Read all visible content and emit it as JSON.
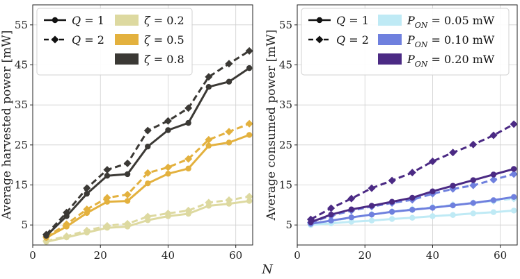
{
  "chart_data": [
    {
      "type": "line",
      "ylabel": "Average harvested power [mW]",
      "xlim": [
        0,
        65
      ],
      "ylim": [
        0,
        60
      ],
      "xticks": [
        0,
        20,
        40,
        60
      ],
      "yticks": [
        5,
        15,
        25,
        35,
        45,
        55
      ],
      "grid": true,
      "x": [
        4,
        10,
        16,
        22,
        28,
        34,
        40,
        46,
        52,
        58,
        64
      ],
      "series": [
        {
          "name": "ζ = 0.2, Q = 1",
          "color": "#ddd9a0",
          "style": "solid",
          "marker": "circle",
          "values": [
            0.8,
            1.9,
            3.1,
            4.3,
            4.6,
            6.2,
            7.2,
            7.8,
            9.8,
            10.3,
            11.0
          ]
        },
        {
          "name": "ζ = 0.2, Q = 2",
          "color": "#ddd9a0",
          "style": "dashed",
          "marker": "diamond",
          "values": [
            1.0,
            2.2,
            3.6,
            4.8,
            5.3,
            7.1,
            7.9,
            8.6,
            10.6,
            11.2,
            12.1
          ]
        },
        {
          "name": "ζ = 0.5, Q = 1",
          "color": "#e3b13e",
          "style": "solid",
          "marker": "circle",
          "values": [
            1.8,
            4.6,
            8.0,
            10.8,
            11.0,
            15.4,
            17.8,
            19.1,
            24.8,
            25.6,
            27.5
          ]
        },
        {
          "name": "ζ = 0.5, Q = 2",
          "color": "#e3b13e",
          "style": "dashed",
          "marker": "diamond",
          "values": [
            2.0,
            5.2,
            8.9,
            11.8,
            12.6,
            18.0,
            19.4,
            21.5,
            26.3,
            28.3,
            30.3
          ]
        },
        {
          "name": "ζ = 0.8, Q = 1",
          "color": "#3b3935",
          "style": "solid",
          "marker": "circle",
          "values": [
            2.3,
            7.2,
            12.8,
            17.3,
            17.7,
            24.6,
            28.7,
            30.5,
            39.5,
            40.8,
            44.2
          ]
        },
        {
          "name": "ζ = 0.8, Q = 2",
          "color": "#3b3935",
          "style": "dashed",
          "marker": "diamond",
          "values": [
            2.6,
            8.1,
            14.2,
            18.8,
            20.4,
            28.6,
            31.0,
            34.2,
            42.0,
            45.3,
            48.5
          ]
        }
      ],
      "legend": {
        "placement": "top-left",
        "style_entries": [
          {
            "label": "Q = 1",
            "style": "solid",
            "marker": "circle"
          },
          {
            "label": "Q = 2",
            "style": "dashed",
            "marker": "diamond"
          }
        ],
        "color_entries": [
          {
            "label": "ζ = 0.2",
            "color": "#ddd9a0"
          },
          {
            "label": "ζ = 0.5",
            "color": "#e3b13e"
          },
          {
            "label": "ζ = 0.8",
            "color": "#3b3935"
          }
        ]
      }
    },
    {
      "type": "line",
      "ylabel": "Average consumed power [mW]",
      "xlim": [
        0,
        65
      ],
      "ylim": [
        0,
        60
      ],
      "xticks": [
        0,
        20,
        40,
        60
      ],
      "yticks": [
        5,
        15,
        25,
        35,
        45,
        55
      ],
      "grid": true,
      "x": [
        4,
        10,
        16,
        22,
        28,
        34,
        40,
        46,
        52,
        58,
        64
      ],
      "series": [
        {
          "name": "P_ON = 0.05 mW, Q = 1",
          "color": "#bfeaf5",
          "style": "solid",
          "marker": "circle",
          "values": [
            5.0,
            5.4,
            5.8,
            6.1,
            6.5,
            6.8,
            7.2,
            7.5,
            7.9,
            8.2,
            8.6
          ]
        },
        {
          "name": "P_ON = 0.05 mW, Q = 2",
          "color": "#bfeaf5",
          "style": "dashed",
          "marker": "diamond",
          "values": [
            5.2,
            6.0,
            6.8,
            7.6,
            8.3,
            8.9,
            9.4,
            10.0,
            10.5,
            11.0,
            11.6
          ]
        },
        {
          "name": "P_ON = 0.10 mW, Q = 1",
          "color": "#6f80de",
          "style": "solid",
          "marker": "circle",
          "values": [
            5.3,
            6.1,
            6.9,
            7.6,
            8.3,
            8.8,
            9.3,
            9.9,
            10.5,
            11.2,
            12.0
          ]
        },
        {
          "name": "P_ON = 0.10 mW, Q = 2",
          "color": "#6f80de",
          "style": "dashed",
          "marker": "diamond",
          "values": [
            5.6,
            7.3,
            8.6,
            9.6,
            10.5,
            11.3,
            12.8,
            14.0,
            14.9,
            16.3,
            17.7
          ]
        },
        {
          "name": "P_ON = 0.20 mW, Q = 1",
          "color": "#4b2a84",
          "style": "solid",
          "marker": "circle",
          "values": [
            5.7,
            7.6,
            8.9,
            9.8,
            10.8,
            11.8,
            13.4,
            14.8,
            16.2,
            17.6,
            19.0
          ]
        },
        {
          "name": "P_ON = 0.20 mW, Q = 2",
          "color": "#4b2a84",
          "style": "dashed",
          "marker": "diamond",
          "values": [
            6.4,
            9.2,
            11.6,
            14.2,
            16.1,
            18.1,
            20.9,
            23.1,
            25.1,
            27.4,
            30.2
          ]
        }
      ],
      "legend": {
        "placement": "top-left",
        "style_entries": [
          {
            "label": "Q = 1",
            "style": "solid",
            "marker": "circle"
          },
          {
            "label": "Q = 2",
            "style": "dashed",
            "marker": "diamond"
          }
        ],
        "color_entries": [
          {
            "label": "P_ON = 0.05 mW",
            "color": "#bfeaf5"
          },
          {
            "label": "P_ON = 0.10 mW",
            "color": "#6f80de"
          },
          {
            "label": "P_ON = 0.20 mW",
            "color": "#4b2a84"
          }
        ]
      }
    }
  ],
  "shared_xlabel": "N"
}
